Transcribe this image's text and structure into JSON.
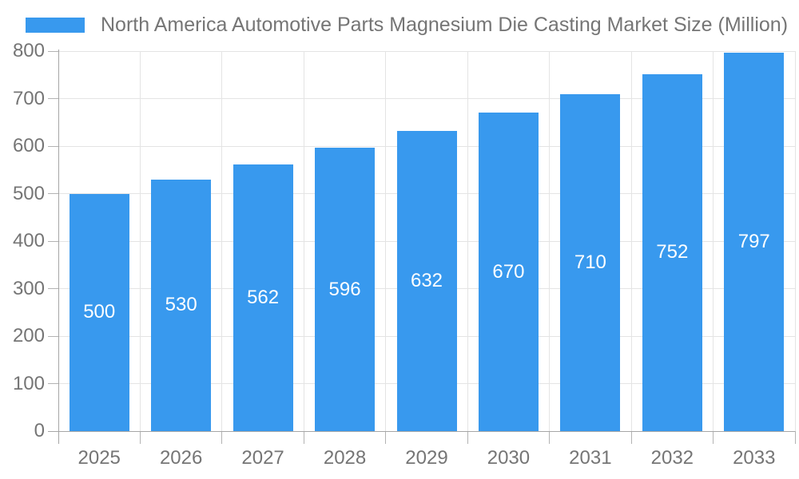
{
  "chart_data": {
    "type": "bar",
    "title": "North America Automotive Parts Magnesium Die Casting Market Size (Million)",
    "categories": [
      "2025",
      "2026",
      "2027",
      "2028",
      "2029",
      "2030",
      "2031",
      "2032",
      "2033"
    ],
    "values": [
      500,
      530,
      562,
      596,
      632,
      670,
      710,
      752,
      797
    ],
    "data_labels": [
      "500",
      "530",
      "562",
      "596",
      "632",
      "670",
      "710",
      "752",
      "797"
    ],
    "xlabel": "",
    "ylabel": "",
    "ylim": [
      0,
      800
    ],
    "ytick_step": 100,
    "ytick_labels": [
      "0",
      "100",
      "200",
      "300",
      "400",
      "500",
      "600",
      "700",
      "800"
    ],
    "grid": true,
    "legend_position": "top-left",
    "colors": {
      "bar": "#3899EE",
      "bar_label": "#FFFFFF",
      "axis_text": "#757575",
      "gridline": "#E4E4E4",
      "axis_line": "#A6A6A6",
      "tick": "#B3B3B3",
      "background": "#FFFFFF"
    }
  }
}
